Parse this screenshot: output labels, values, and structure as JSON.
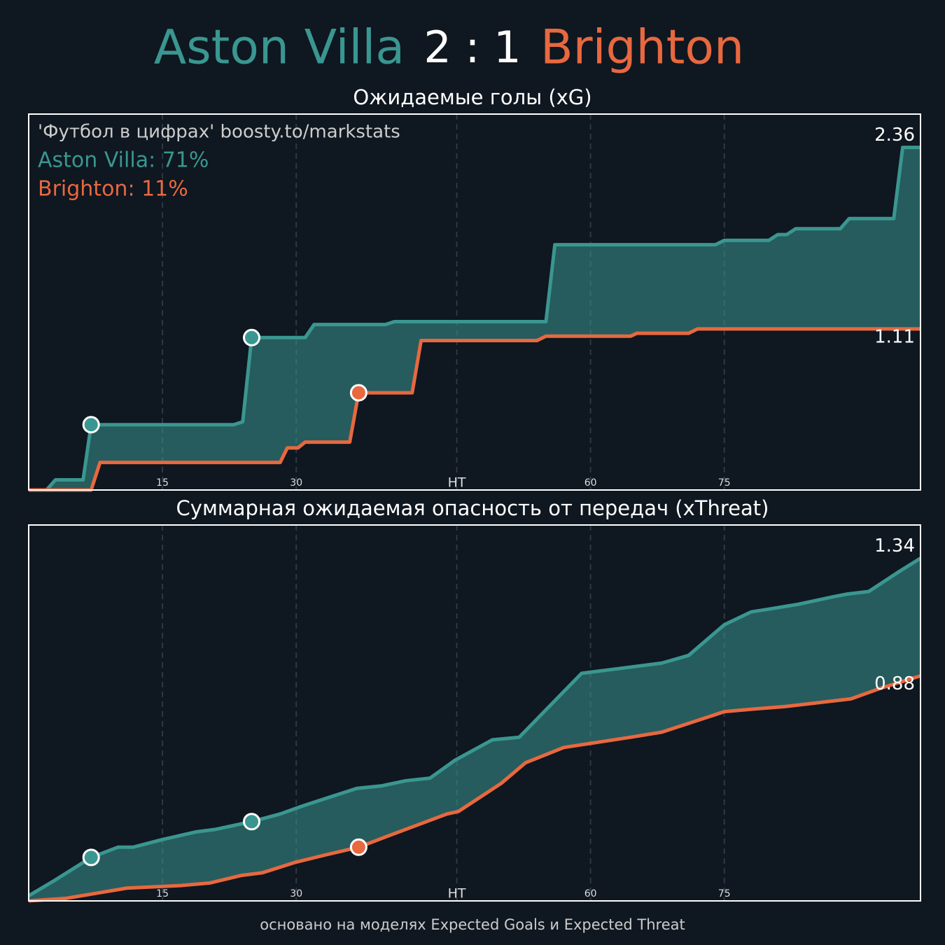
{
  "header": {
    "home": "Aston Villa",
    "score": "2 : 1",
    "away": "Brighton",
    "home_color": "#3a9690",
    "away_color": "#e8683f"
  },
  "footer": "основано на моделях Expected Goals и Expected Threat",
  "chart_data": [
    {
      "type": "line",
      "title": "Ожидаемые голы (xG)",
      "annotations": [
        {
          "text": "'Футбол в цифрах' boosty.to/markstats",
          "color": "#cccccc"
        },
        {
          "text": "Aston Villa: 71%",
          "color": "#3a9690"
        },
        {
          "text": "Brighton: 11%",
          "color": "#e8683f"
        }
      ],
      "xlim": [
        0,
        100
      ],
      "xticks": [
        15,
        30,
        {
          "value": 48,
          "label": "HT"
        },
        {
          "value": 63,
          "label": "60"
        },
        {
          "value": 78,
          "label": "75"
        }
      ],
      "ylim": [
        0,
        2.59
      ],
      "grid": true,
      "series": [
        {
          "color": "#3a9690",
          "x": [
            0,
            2,
            3,
            6.1,
            7,
            23,
            24,
            25,
            31,
            32,
            40,
            41,
            58,
            59,
            77,
            78,
            83,
            84,
            85,
            86,
            91,
            92,
            97,
            98,
            100
          ],
          "values": [
            0,
            0,
            0.07,
            0.07,
            0.45,
            0.45,
            0.47,
            1.05,
            1.05,
            1.14,
            1.14,
            1.16,
            1.16,
            1.69,
            1.69,
            1.72,
            1.72,
            1.76,
            1.76,
            1.8,
            1.8,
            1.87,
            1.87,
            2.36,
            2.36
          ],
          "goals_x": [
            7,
            25
          ],
          "goals_values": [
            0.45,
            1.05
          ]
        },
        {
          "color": "#e8683f",
          "x": [
            0,
            7,
            8,
            28.2,
            29,
            30.2,
            31,
            36,
            37,
            43,
            44,
            57,
            58,
            67.5,
            68.2,
            74,
            75,
            100
          ],
          "values": [
            0,
            0,
            0.19,
            0.19,
            0.29,
            0.29,
            0.33,
            0.33,
            0.67,
            0.67,
            1.03,
            1.03,
            1.06,
            1.06,
            1.08,
            1.08,
            1.11,
            1.11
          ],
          "goals_x": [
            37
          ],
          "goals_values": [
            0.67
          ]
        }
      ]
    },
    {
      "type": "line",
      "title": "Суммарная ожидаемая опасность от передач (xThreat)",
      "xlim": [
        0,
        100
      ],
      "xticks": [
        15,
        30,
        {
          "value": 48,
          "label": "HT"
        },
        {
          "value": 63,
          "label": "60"
        },
        {
          "value": 78,
          "label": "75"
        }
      ],
      "ylim": [
        0,
        1.47
      ],
      "grid": true,
      "series": [
        {
          "color": "#3a9690",
          "x": [
            0,
            2.9,
            7,
            10,
            11.7,
            15,
            18.8,
            21,
            25,
            28.2,
            30.6,
            35,
            36.8,
            39.6,
            42.3,
            45,
            47.8,
            52,
            55,
            62,
            71,
            74,
            78,
            81,
            82.8,
            86.3,
            90.3,
            91.8,
            94.2,
            97.7,
            100
          ],
          "values": [
            0.02,
            0.08,
            0.17,
            0.21,
            0.21,
            0.24,
            0.27,
            0.28,
            0.31,
            0.34,
            0.37,
            0.42,
            0.44,
            0.45,
            0.47,
            0.48,
            0.55,
            0.63,
            0.64,
            0.89,
            0.93,
            0.96,
            1.08,
            1.13,
            1.14,
            1.16,
            1.19,
            1.2,
            1.21,
            1.29,
            1.34
          ],
          "goals_x": [
            7,
            25
          ],
          "goals_values": [
            0.17,
            0.31
          ]
        },
        {
          "color": "#e8683f",
          "x": [
            0,
            4.2,
            11,
            17,
            20.3,
            23.9,
            26.2,
            29.8,
            33.3,
            37,
            40,
            46.9,
            48.2,
            53,
            55.7,
            60,
            67.5,
            71,
            78,
            81.2,
            84.8,
            92.2,
            95.4,
            100
          ],
          "values": [
            0,
            0.01,
            0.05,
            0.06,
            0.07,
            0.1,
            0.11,
            0.15,
            0.18,
            0.21,
            0.25,
            0.34,
            0.35,
            0.46,
            0.54,
            0.6,
            0.64,
            0.66,
            0.74,
            0.75,
            0.76,
            0.79,
            0.83,
            0.88
          ],
          "goals_x": [
            37
          ],
          "goals_values": [
            0.21
          ]
        }
      ]
    }
  ]
}
